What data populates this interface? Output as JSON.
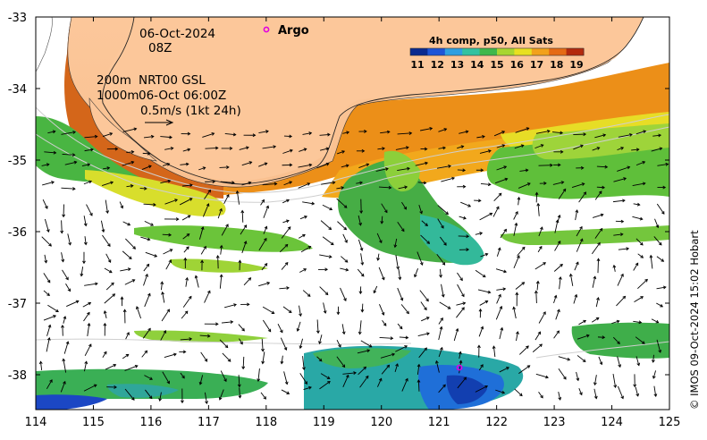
{
  "date_line": "06-Oct-2024",
  "time_line": "08Z",
  "argo_label": "Argo",
  "contour_label_200": "200m",
  "contour_label_1000": "1000m",
  "source_label": "NRT00 GSL",
  "source_time": "06-Oct 06:00Z",
  "scale_label": "0.5m/s (1kt 24h)",
  "colorbar": {
    "title": "4h comp, p50, All Sats",
    "ticks": [
      "11",
      "12",
      "13",
      "14",
      "15",
      "16",
      "17",
      "18",
      "19"
    ],
    "colors": [
      "#0b2a8f",
      "#1f55d6",
      "#2f9fe0",
      "#33c2a0",
      "#3fb84b",
      "#a8d630",
      "#e8e020",
      "#f2a11a",
      "#e56a14",
      "#b32a0e"
    ]
  },
  "x_ticks": [
    "114",
    "115",
    "116",
    "117",
    "118",
    "119",
    "120",
    "121",
    "122",
    "123",
    "124",
    "125"
  ],
  "y_ticks": [
    "-33",
    "-34",
    "-35",
    "-36",
    "-37",
    "-38"
  ],
  "credit": "© IMOS 09-Oct-2024 15:02 Hobart",
  "colors": {
    "land": "#fcc79a",
    "frame": "#000000"
  }
}
